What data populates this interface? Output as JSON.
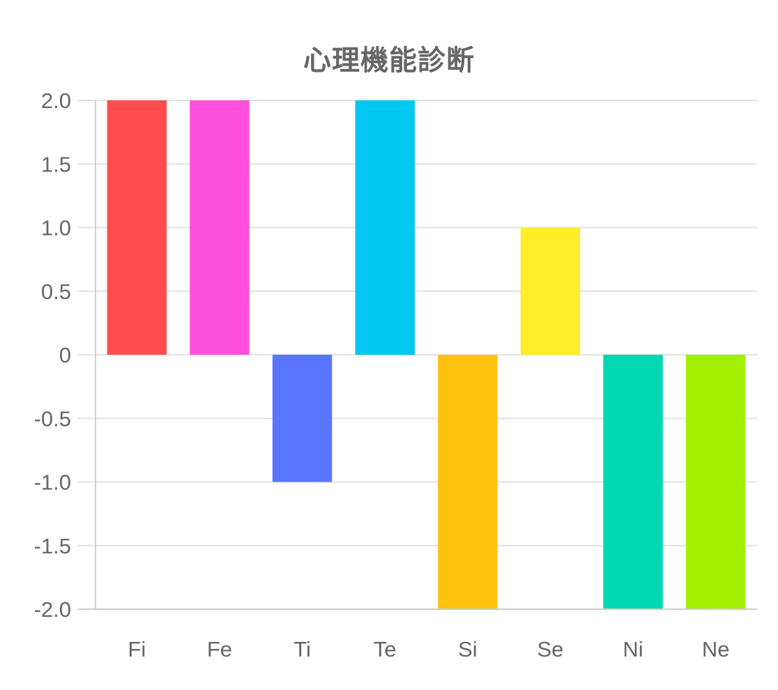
{
  "chart_data": {
    "type": "bar",
    "title": "心理機能診断",
    "categories": [
      "Fi",
      "Fe",
      "Ti",
      "Te",
      "Si",
      "Se",
      "Ni",
      "Ne"
    ],
    "values": [
      2,
      2,
      -1,
      2,
      -2,
      1,
      -2,
      -2
    ],
    "colors": [
      "#ff4d4d",
      "#ff4fdc",
      "#5a75ff",
      "#00c8f0",
      "#ffc211",
      "#ffee28",
      "#00d8b4",
      "#a2f000"
    ],
    "ylim": [
      -2,
      2
    ],
    "y_ticks": [
      2,
      1.5,
      1,
      0.5,
      0,
      -0.5,
      -1,
      -1.5,
      -2
    ],
    "y_tick_labels": [
      "2.0",
      "1.5",
      "1.0",
      "0.5",
      "0",
      "-0.5",
      "-1.0",
      "-1.5",
      "-2.0"
    ],
    "xlabel": "",
    "ylabel": "",
    "grid": true,
    "legend": "none"
  }
}
